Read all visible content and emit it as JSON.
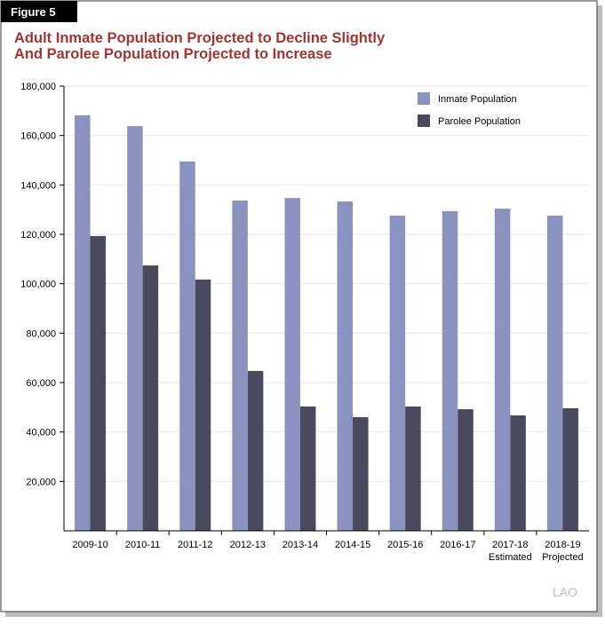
{
  "figure_label": "Figure 5",
  "logo": "LAO",
  "chart_data": {
    "type": "bar",
    "title": [
      "Adult Inmate Population Projected to Decline Slightly",
      "And Parolee Population Projected to Increase"
    ],
    "categories": [
      "2009-10",
      "2010-11",
      "2011-12",
      "2012-13",
      "2013-14",
      "2014-15",
      "2015-16",
      "2016-17",
      "2017-18",
      "2018-19"
    ],
    "category_sublabels": [
      null,
      null,
      null,
      null,
      null,
      null,
      null,
      null,
      "Estimated",
      "Projected"
    ],
    "series": [
      {
        "name": "Inmate Population",
        "color": "#8a93bf",
        "values": [
          168200,
          163800,
          149500,
          133700,
          134700,
          133300,
          127600,
          129400,
          130400,
          127600
        ]
      },
      {
        "name": "Parolee Population",
        "color": "#4a4a5e",
        "values": [
          119300,
          107400,
          101700,
          64700,
          50300,
          46000,
          50300,
          49200,
          46700,
          49600
        ]
      }
    ],
    "ylim": [
      0,
      180000
    ],
    "yticks": [
      {
        "value": 20000,
        "label": "20,000"
      },
      {
        "value": 40000,
        "label": "40,000"
      },
      {
        "value": 60000,
        "label": "60,000"
      },
      {
        "value": 80000,
        "label": "80,000"
      },
      {
        "value": 100000,
        "label": "100,000"
      },
      {
        "value": 120000,
        "label": "120,000"
      },
      {
        "value": 140000,
        "label": "140,000"
      },
      {
        "value": 160000,
        "label": "160,000"
      },
      {
        "value": 180000,
        "label": "180,000"
      }
    ],
    "grid": true,
    "legend": "top-right"
  }
}
